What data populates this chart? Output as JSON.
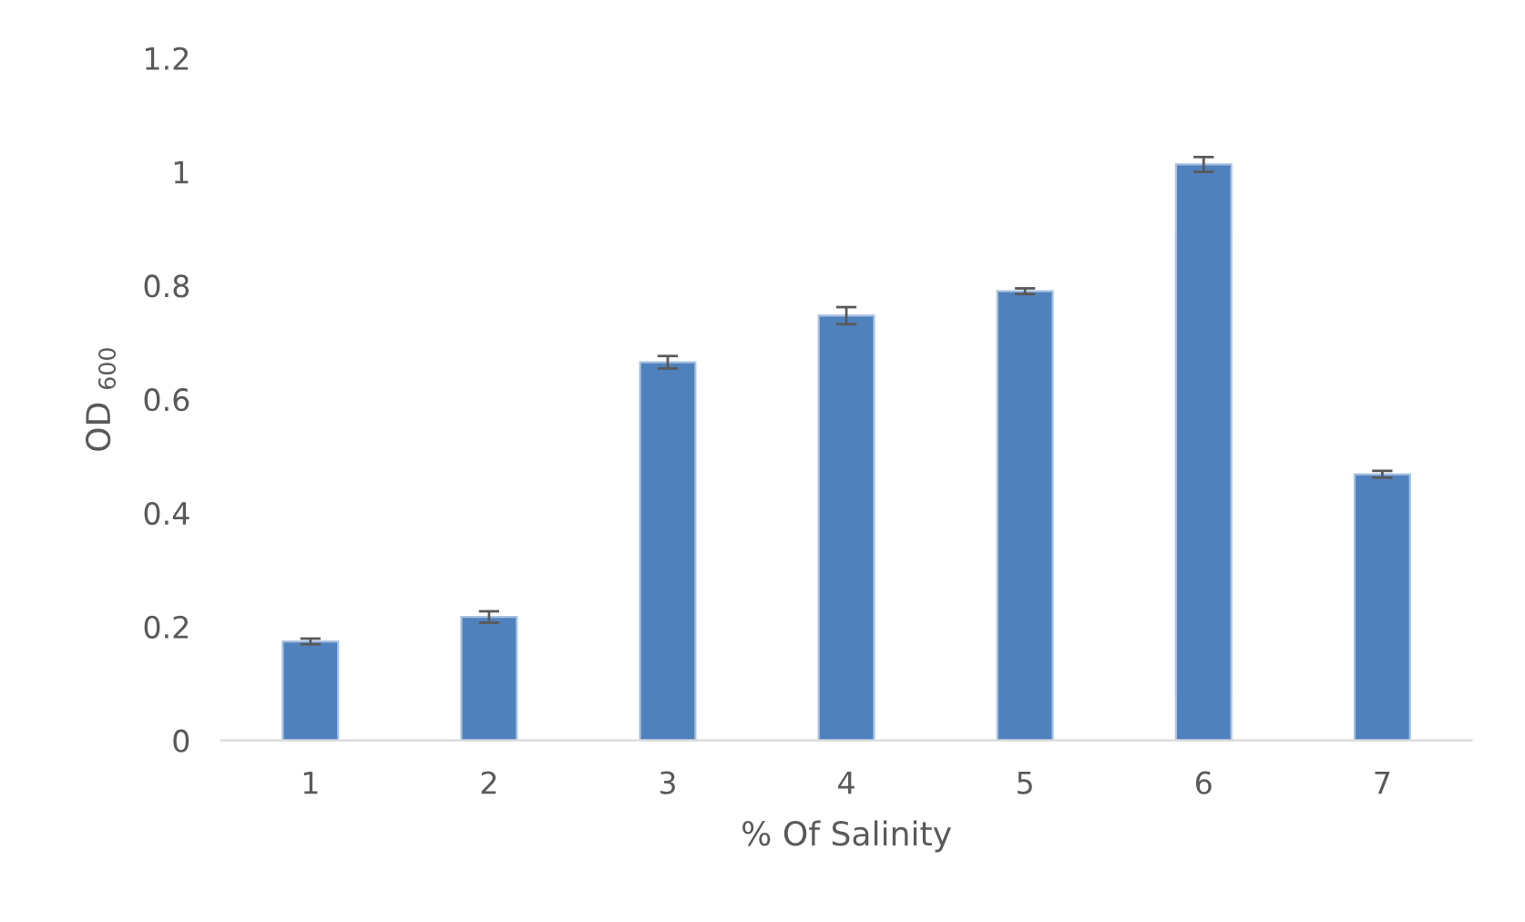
{
  "chart_data": {
    "type": "bar",
    "xlabel": "% Of Salinity",
    "ylabel": "OD $_{600}$",
    "categories": [
      "1",
      "2",
      "3",
      "4",
      "5",
      "6",
      "7"
    ],
    "values": [
      0.174,
      0.217,
      0.665,
      0.747,
      0.79,
      1.013,
      0.468
    ],
    "errors": [
      0.005,
      0.01,
      0.011,
      0.015,
      0.005,
      0.013,
      0.006
    ],
    "color": "#4f81bd",
    "ylim": [
      0,
      1.2
    ],
    "yticks": [
      0,
      0.2,
      0.4,
      0.6,
      0.8,
      1,
      1.2
    ],
    "grid": false,
    "legend": false
  }
}
